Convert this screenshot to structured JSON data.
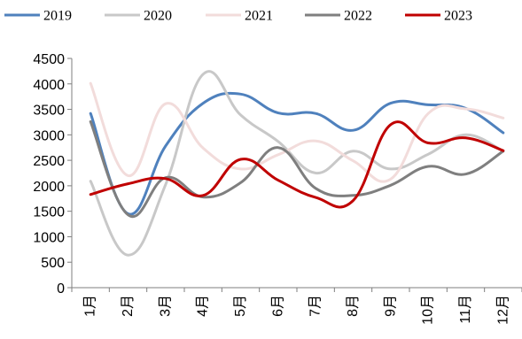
{
  "chart_data": {
    "type": "line",
    "title": "",
    "xlabel": "",
    "ylabel": "",
    "categories": [
      "1月",
      "2月",
      "3月",
      "4月",
      "5月",
      "6月",
      "7月",
      "8月",
      "9月",
      "10月",
      "11月",
      "12月"
    ],
    "ylim": [
      0,
      4500
    ],
    "yticks": [
      0,
      500,
      1000,
      1500,
      2000,
      2500,
      3000,
      3500,
      4000,
      4500
    ],
    "grid": false,
    "legend_position": "top",
    "series": [
      {
        "name": "2019",
        "color": "#4F81BD",
        "values": [
          3420,
          1450,
          2780,
          3620,
          3800,
          3430,
          3420,
          3090,
          3620,
          3590,
          3520,
          3040
        ]
      },
      {
        "name": "2020",
        "color": "#C8C8C8",
        "values": [
          2090,
          640,
          2020,
          4190,
          3390,
          2870,
          2250,
          2680,
          2330,
          2620,
          3000,
          2680
        ]
      },
      {
        "name": "2021",
        "color": "#F2DCDB",
        "values": [
          4010,
          2200,
          3610,
          2740,
          2330,
          2610,
          2880,
          2490,
          2130,
          3420,
          3510,
          3330
        ]
      },
      {
        "name": "2022",
        "color": "#7F7F7F",
        "values": [
          3260,
          1430,
          2160,
          1780,
          2060,
          2750,
          1950,
          1810,
          2010,
          2380,
          2230,
          2680
        ]
      },
      {
        "name": "2023",
        "color": "#C00000",
        "values": [
          1830,
          2040,
          2140,
          1810,
          2520,
          2110,
          1770,
          1710,
          3200,
          2840,
          2940,
          2690
        ]
      }
    ]
  }
}
